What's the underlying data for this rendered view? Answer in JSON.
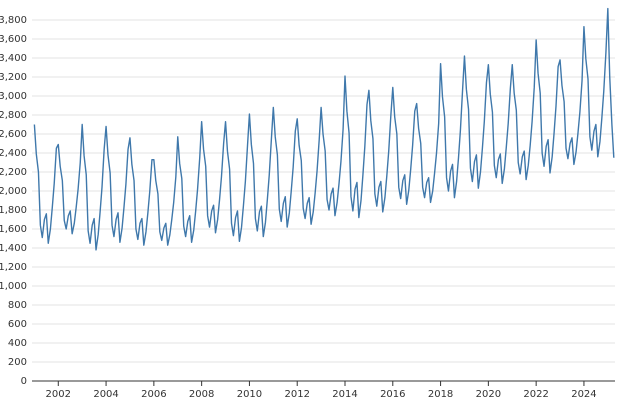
{
  "chart_data": {
    "type": "line",
    "x": [
      2001,
      2001.08,
      2001.17,
      2001.25,
      2001.33,
      2001.42,
      2001.5,
      2001.58,
      2001.67,
      2001.75,
      2001.83,
      2001.92,
      2002,
      2002.08,
      2002.17,
      2002.25,
      2002.33,
      2002.42,
      2002.5,
      2002.58,
      2002.67,
      2002.75,
      2002.83,
      2002.92,
      2003,
      2003.08,
      2003.17,
      2003.25,
      2003.33,
      2003.42,
      2003.5,
      2003.58,
      2003.67,
      2003.75,
      2003.83,
      2003.92,
      2004,
      2004.08,
      2004.17,
      2004.25,
      2004.33,
      2004.42,
      2004.5,
      2004.58,
      2004.67,
      2004.75,
      2004.83,
      2004.92,
      2005,
      2005.08,
      2005.17,
      2005.25,
      2005.33,
      2005.42,
      2005.5,
      2005.58,
      2005.67,
      2005.75,
      2005.83,
      2005.92,
      2006,
      2006.08,
      2006.17,
      2006.25,
      2006.33,
      2006.42,
      2006.5,
      2006.58,
      2006.67,
      2006.75,
      2006.83,
      2006.92,
      2007,
      2007.08,
      2007.17,
      2007.25,
      2007.33,
      2007.42,
      2007.5,
      2007.58,
      2007.67,
      2007.75,
      2007.83,
      2007.92,
      2008,
      2008.08,
      2008.17,
      2008.25,
      2008.33,
      2008.42,
      2008.5,
      2008.58,
      2008.67,
      2008.75,
      2008.83,
      2008.92,
      2009,
      2009.08,
      2009.17,
      2009.25,
      2009.33,
      2009.42,
      2009.5,
      2009.58,
      2009.67,
      2009.75,
      2009.83,
      2009.92,
      2010,
      2010.08,
      2010.17,
      2010.25,
      2010.33,
      2010.42,
      2010.5,
      2010.58,
      2010.67,
      2010.75,
      2010.83,
      2010.92,
      2011,
      2011.08,
      2011.17,
      2011.25,
      2011.33,
      2011.42,
      2011.5,
      2011.58,
      2011.67,
      2011.75,
      2011.83,
      2011.92,
      2012,
      2012.08,
      2012.17,
      2012.25,
      2012.33,
      2012.42,
      2012.5,
      2012.58,
      2012.67,
      2012.75,
      2012.83,
      2012.92,
      2013,
      2013.08,
      2013.17,
      2013.25,
      2013.33,
      2013.42,
      2013.5,
      2013.58,
      2013.67,
      2013.75,
      2013.83,
      2013.92,
      2014,
      2014.08,
      2014.17,
      2014.25,
      2014.33,
      2014.42,
      2014.5,
      2014.58,
      2014.67,
      2014.75,
      2014.83,
      2014.92,
      2015,
      2015.08,
      2015.17,
      2015.25,
      2015.33,
      2015.42,
      2015.5,
      2015.58,
      2015.67,
      2015.75,
      2015.83,
      2015.92,
      2016,
      2016.08,
      2016.17,
      2016.25,
      2016.33,
      2016.42,
      2016.5,
      2016.58,
      2016.67,
      2016.75,
      2016.83,
      2016.92,
      2017,
      2017.08,
      2017.17,
      2017.25,
      2017.33,
      2017.42,
      2017.5,
      2017.58,
      2017.67,
      2017.75,
      2017.83,
      2017.92,
      2018,
      2018.08,
      2018.17,
      2018.25,
      2018.33,
      2018.42,
      2018.5,
      2018.58,
      2018.67,
      2018.75,
      2018.83,
      2018.92,
      2019,
      2019.08,
      2019.17,
      2019.25,
      2019.33,
      2019.42,
      2019.5,
      2019.58,
      2019.67,
      2019.75,
      2019.83,
      2019.92,
      2020,
      2020.08,
      2020.17,
      2020.25,
      2020.33,
      2020.42,
      2020.5,
      2020.58,
      2020.67,
      2020.75,
      2020.83,
      2020.92,
      2021,
      2021.08,
      2021.17,
      2021.25,
      2021.33,
      2021.42,
      2021.5,
      2021.58,
      2021.67,
      2021.75,
      2021.83,
      2021.92,
      2022,
      2022.08,
      2022.17,
      2022.25,
      2022.33,
      2022.42,
      2022.5,
      2022.58,
      2022.67,
      2022.75,
      2022.83,
      2022.92,
      2023,
      2023.08,
      2023.17,
      2023.25,
      2023.33,
      2023.42,
      2023.5,
      2023.58,
      2023.67,
      2023.75,
      2023.83,
      2023.92,
      2024,
      2024.08,
      2024.17,
      2024.25,
      2024.33,
      2024.42,
      2024.5,
      2024.58,
      2024.67,
      2024.75,
      2024.83,
      2024.92,
      2025,
      2025.08,
      2025.17,
      2025.25
    ],
    "series": [
      {
        "color": "#3f78ab",
        "values": [
          2700,
          2390,
          2200,
          1640,
          1510,
          1700,
          1760,
          1450,
          1600,
          1830,
          2080,
          2450,
          2490,
          2260,
          2110,
          1690,
          1600,
          1740,
          1790,
          1550,
          1660,
          1830,
          2020,
          2300,
          2700,
          2370,
          2170,
          1580,
          1450,
          1640,
          1710,
          1380,
          1540,
          1780,
          2040,
          2440,
          2680,
          2380,
          2190,
          1640,
          1520,
          1700,
          1770,
          1460,
          1610,
          1830,
          2070,
          2440,
          2560,
          2280,
          2110,
          1600,
          1490,
          1660,
          1710,
          1430,
          1570,
          1770,
          2000,
          2330,
          2330,
          2110,
          1970,
          1570,
          1480,
          1610,
          1660,
          1430,
          1540,
          1700,
          1880,
          2150,
          2570,
          2290,
          2130,
          1630,
          1520,
          1680,
          1740,
          1460,
          1590,
          1790,
          2020,
          2350,
          2730,
          2440,
          2260,
          1740,
          1620,
          1790,
          1850,
          1560,
          1700,
          1910,
          2150,
          2500,
          2730,
          2420,
          2230,
          1660,
          1530,
          1720,
          1790,
          1470,
          1620,
          1850,
          2100,
          2480,
          2810,
          2490,
          2290,
          1710,
          1580,
          1780,
          1840,
          1520,
          1670,
          1910,
          2170,
          2550,
          2880,
          2570,
          2380,
          1810,
          1680,
          1870,
          1940,
          1620,
          1770,
          2000,
          2250,
          2630,
          2760,
          2480,
          2320,
          1820,
          1710,
          1870,
          1930,
          1650,
          1780,
          1980,
          2210,
          2540,
          2880,
          2600,
          2420,
          1910,
          1800,
          1970,
          2030,
          1740,
          1880,
          2080,
          2310,
          2650,
          3210,
          2840,
          2610,
          1940,
          1790,
          2020,
          2090,
          1720,
          1900,
          2170,
          2470,
          2910,
          3060,
          2740,
          2550,
          1970,
          1840,
          2040,
          2100,
          1780,
          1930,
          2160,
          2420,
          2800,
          3090,
          2780,
          2600,
          2040,
          1920,
          2110,
          2170,
          1860,
          2010,
          2230,
          2480,
          2840,
          2920,
          2660,
          2500,
          2040,
          1930,
          2090,
          2140,
          1880,
          2000,
          2190,
          2400,
          2710,
          3340,
          2990,
          2780,
          2140,
          2000,
          2210,
          2280,
          1930,
          2100,
          2350,
          2640,
          3060,
          3420,
          3070,
          2860,
          2240,
          2100,
          2310,
          2380,
          2030,
          2200,
          2450,
          2730,
          3140,
          3330,
          3020,
          2830,
          2270,
          2140,
          2330,
          2390,
          2080,
          2230,
          2460,
          2710,
          3080,
          3330,
          3030,
          2850,
          2300,
          2180,
          2360,
          2420,
          2120,
          2270,
          2480,
          2730,
          3090,
          3590,
          3240,
          3030,
          2400,
          2260,
          2470,
          2540,
          2190,
          2360,
          2610,
          2890,
          3310,
          3380,
          3110,
          2940,
          2450,
          2340,
          2500,
          2560,
          2280,
          2410,
          2610,
          2830,
          3160,
          3730,
          3390,
          3180,
          2570,
          2430,
          2630,
          2700,
          2360,
          2520,
          2770,
          3050,
          3460,
          3920,
          3200,
          2700,
          2350
        ]
      }
    ],
    "xlim": [
      2000.9,
      2025.3
    ],
    "xticks": [
      2002,
      2004,
      2006,
      2008,
      2010,
      2012,
      2014,
      2016,
      2018,
      2020,
      2022,
      2024
    ],
    "ylim": [
      0,
      3800
    ],
    "yticks": [
      0,
      200,
      400,
      600,
      800,
      {
        "value": 1000,
        "label": "1,000"
      },
      {
        "value": 1200,
        "label": "1,200"
      },
      {
        "value": 1400,
        "label": "1,400"
      },
      {
        "value": 1600,
        "label": "1,600"
      },
      {
        "value": 1800,
        "label": "1,800"
      },
      {
        "value": 2000,
        "label": "2,000"
      },
      {
        "value": 2200,
        "label": "2,200"
      },
      {
        "value": 2400,
        "label": "2,400"
      },
      {
        "value": 2600,
        "label": "2,600"
      },
      {
        "value": 2800,
        "label": "2,800"
      },
      {
        "value": 3000,
        "label": "3,000"
      },
      {
        "value": 3200,
        "label": "3,200"
      },
      {
        "value": 3400,
        "label": "3,400"
      },
      {
        "value": 3600,
        "label": "3,600"
      },
      {
        "value": 3800,
        "label": "3,800"
      }
    ],
    "grid": true
  }
}
